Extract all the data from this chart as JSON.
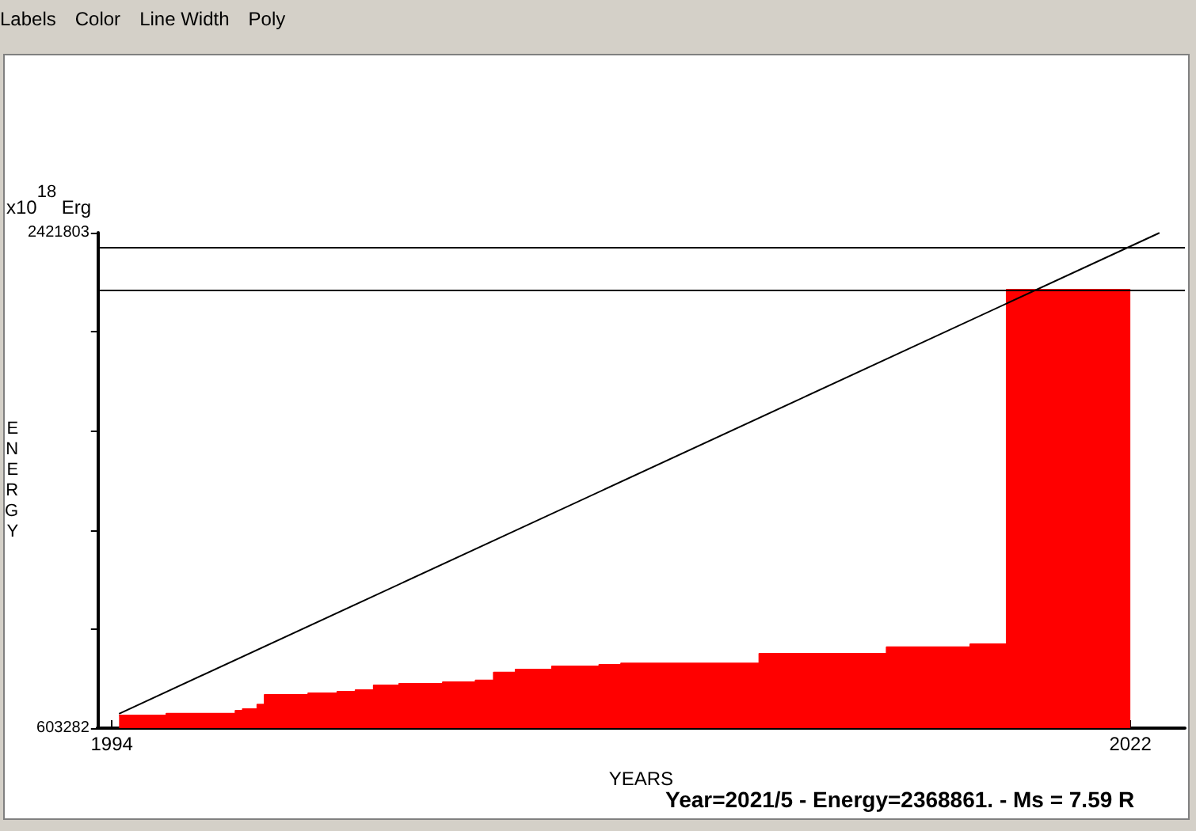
{
  "chart_data": {
    "type": "area",
    "xlabel": "YEARS",
    "ylabel": "ENERGY",
    "annotations": [
      "x10$^{18}$ Erg",
      "Year=2021/5 - Energy=2368861. - Ms = 7.59 R",
      "Labels",
      "Color",
      "Line Width",
      "Poly"
    ],
    "series": [
      {
        "color": "#ff0000",
        "x": [
          1994.2,
          1995.5,
          1995.5,
          1997.4,
          1997.4,
          1997.6,
          1997.6,
          1998.0,
          1998.0,
          1998.2,
          1998.2,
          1999.4,
          1999.4,
          2000.2,
          2000.2,
          2000.7,
          2000.7,
          2001.2,
          2001.2,
          2001.9,
          2001.9,
          2003.1,
          2003.1,
          2004.0,
          2004.0,
          2004.5,
          2004.5,
          2005.1,
          2005.1,
          2006.1,
          2006.1,
          2007.4,
          2007.4,
          2008.0,
          2008.0,
          2011.8,
          2011.8,
          2015.3,
          2015.3,
          2017.6,
          2017.6,
          2018.6,
          2018.6,
          2022.0
        ],
        "values": [
          650000,
          650000,
          656000,
          656000,
          667000,
          667000,
          673000,
          673000,
          690000,
          690000,
          725000,
          725000,
          731000,
          731000,
          737000,
          737000,
          743000,
          743000,
          760000,
          760000,
          766000,
          766000,
          772000,
          772000,
          778000,
          778000,
          807000,
          807000,
          818000,
          818000,
          830000,
          830000,
          836000,
          836000,
          841000,
          841000,
          876000,
          876000,
          900000,
          900000,
          911000,
          911000,
          2213000,
          2213000
        ]
      },
      {
        "type": "line",
        "color": "#000000",
        "x": [
          1994.2,
          2022.8
        ],
        "values": [
          656000,
          2421000
        ]
      }
    ],
    "ref_lines": [
      {
        "axis": "y",
        "value": 2369000,
        "color": "#000000"
      },
      {
        "axis": "y",
        "value": 2213000,
        "color": "#000000"
      }
    ],
    "xlim": [
      1993.6,
      2023.5
    ],
    "xticks": [
      {
        "value": 1994,
        "label": "1994"
      },
      {
        "value": 1995,
        "label": null
      },
      {
        "value": 1996,
        "label": null
      },
      {
        "value": 1997,
        "label": null
      },
      {
        "value": 1998,
        "label": null
      },
      {
        "value": 1999,
        "label": null
      },
      {
        "value": 2000,
        "label": null
      },
      {
        "value": 2001,
        "label": null
      },
      {
        "value": 2002,
        "label": null
      },
      {
        "value": 2003,
        "label": null
      },
      {
        "value": 2004,
        "label": null
      },
      {
        "value": 2005,
        "label": null
      },
      {
        "value": 2006,
        "label": null
      },
      {
        "value": 2007,
        "label": null
      },
      {
        "value": 2008,
        "label": null
      },
      {
        "value": 2009,
        "label": null
      },
      {
        "value": 2010,
        "label": null
      },
      {
        "value": 2011,
        "label": null
      },
      {
        "value": 2012,
        "label": null
      },
      {
        "value": 2013,
        "label": null
      },
      {
        "value": 2014,
        "label": null
      },
      {
        "value": 2015,
        "label": null
      },
      {
        "value": 2016,
        "label": null
      },
      {
        "value": 2017,
        "label": null
      },
      {
        "value": 2018,
        "label": null
      },
      {
        "value": 2019,
        "label": null
      },
      {
        "value": 2020,
        "label": null
      },
      {
        "value": 2021,
        "label": null
      },
      {
        "value": 2022,
        "label": "2022"
      }
    ],
    "ylim": [
      603282,
      2421803
    ],
    "yticks": [
      {
        "value": 603282,
        "label": "603282"
      },
      {
        "value": 966986,
        "label": null
      },
      {
        "value": 1330690,
        "label": null
      },
      {
        "value": 1694395,
        "label": null
      },
      {
        "value": 2058099,
        "label": null
      },
      {
        "value": 2421803,
        "label": "2421803"
      }
    ],
    "grid": false,
    "marker": "none",
    "line_style": "solid"
  }
}
